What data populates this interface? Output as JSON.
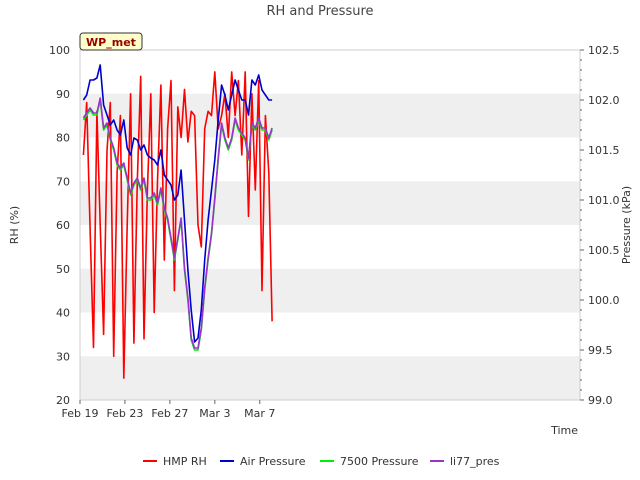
{
  "chart_data": {
    "type": "line",
    "title": "RH and Pressure",
    "badge": "WP_met",
    "xlabel": "Time",
    "ylabel_left": "RH (%)",
    "ylabel_right": "Pressure (kPa)",
    "ylim_left": [
      20,
      100
    ],
    "ylim_right": [
      99.0,
      102.5
    ],
    "yticks_left": [
      20,
      30,
      40,
      50,
      60,
      70,
      80,
      90,
      100
    ],
    "yticks_right": [
      99.0,
      99.5,
      100.0,
      100.5,
      101.0,
      101.5,
      102.0,
      102.5
    ],
    "xlim_days": [
      19,
      63.5
    ],
    "xticks": [
      {
        "day": 19,
        "label": "Feb 19"
      },
      {
        "day": 23,
        "label": "Feb 23"
      },
      {
        "day": 27,
        "label": "Feb 27"
      },
      {
        "day": 31,
        "label": "Mar 3"
      },
      {
        "day": 35,
        "label": "Mar 7"
      }
    ],
    "grid": "horizontal bands",
    "legend_position": "bottom",
    "colors": {
      "HMP RH": "#ff0000",
      "Air Pressure": "#0000cc",
      "7500 Pressure": "#00ee00",
      "li77_pres": "#9933cc",
      "band": "#efefef",
      "badge_bg": "#ffffcc",
      "badge_text": "#990000"
    },
    "series": [
      {
        "name": "HMP RH",
        "axis": "left",
        "x": [
          19.3,
          19.6,
          19.9,
          20.2,
          20.5,
          20.8,
          21.1,
          21.4,
          21.7,
          22.0,
          22.3,
          22.6,
          22.9,
          23.2,
          23.5,
          23.8,
          24.1,
          24.4,
          24.7,
          25.0,
          25.3,
          25.6,
          25.9,
          26.2,
          26.5,
          26.8,
          27.1,
          27.4,
          27.7,
          28.0,
          28.3,
          28.6,
          28.9,
          29.2,
          29.5,
          29.8,
          30.1,
          30.4,
          30.7,
          31.0,
          31.3,
          31.6,
          31.9,
          32.2,
          32.5,
          32.8,
          33.1,
          33.4,
          33.7,
          34.0,
          34.3,
          34.6,
          34.9,
          35.2,
          35.5,
          35.8,
          36.1
        ],
        "values": [
          76,
          88,
          59,
          32,
          86,
          60,
          35,
          77,
          88,
          30,
          72,
          85,
          25,
          60,
          90,
          33,
          70,
          94,
          34,
          68,
          90,
          40,
          70,
          92,
          52,
          82,
          93,
          45,
          87,
          80,
          91,
          79,
          86,
          85,
          60,
          55,
          82,
          86,
          85,
          95,
          82,
          85,
          90,
          80,
          95,
          85,
          93,
          76,
          95,
          62,
          90,
          68,
          93,
          45,
          85,
          72,
          38
        ]
      },
      {
        "name": "Air Pressure",
        "axis": "right",
        "x": [
          19.3,
          19.6,
          19.9,
          20.2,
          20.5,
          20.8,
          21.1,
          21.4,
          21.7,
          22.0,
          22.3,
          22.6,
          22.9,
          23.2,
          23.5,
          23.8,
          24.1,
          24.4,
          24.7,
          25.0,
          25.3,
          25.6,
          25.9,
          26.2,
          26.5,
          26.8,
          27.1,
          27.4,
          27.7,
          28.0,
          28.3,
          28.6,
          28.9,
          29.2,
          29.5,
          29.8,
          30.1,
          30.4,
          30.7,
          31.0,
          31.3,
          31.6,
          31.9,
          32.2,
          32.5,
          32.8,
          33.1,
          33.4,
          33.7,
          34.0,
          34.3,
          34.6,
          34.9,
          35.2,
          35.5,
          35.8,
          36.1
        ],
        "values": [
          102.0,
          102.05,
          102.2,
          102.2,
          102.22,
          102.35,
          101.95,
          101.85,
          101.75,
          101.8,
          101.7,
          101.65,
          101.8,
          101.52,
          101.45,
          101.62,
          101.6,
          101.5,
          101.55,
          101.45,
          101.42,
          101.4,
          101.35,
          101.5,
          101.25,
          101.2,
          101.15,
          101.0,
          101.05,
          101.3,
          100.8,
          100.3,
          99.9,
          99.58,
          99.62,
          99.9,
          100.4,
          100.8,
          101.1,
          101.4,
          101.8,
          102.15,
          102.05,
          101.9,
          102.05,
          102.2,
          102.1,
          102.0,
          102.0,
          101.85,
          102.2,
          102.15,
          102.25,
          102.1,
          102.05,
          102.0,
          102.0
        ]
      },
      {
        "name": "7500 Pressure",
        "axis": "right",
        "x": [
          19.3,
          19.6,
          19.9,
          20.2,
          20.5,
          20.8,
          21.1,
          21.4,
          21.7,
          22.0,
          22.3,
          22.6,
          22.9,
          23.2,
          23.5,
          23.8,
          24.1,
          24.4,
          24.7,
          25.0,
          25.3,
          25.6,
          25.9,
          26.2,
          26.5,
          26.8,
          27.1,
          27.4,
          27.7,
          28.0,
          28.3,
          28.6,
          28.9,
          29.2,
          29.5,
          29.8,
          30.1,
          30.4,
          30.7,
          31.0,
          31.3,
          31.6,
          31.9,
          32.2,
          32.5,
          32.8,
          33.1,
          33.4,
          33.7,
          34.0,
          34.3,
          34.6,
          34.9,
          35.2,
          35.5,
          35.8,
          36.1
        ],
        "values": [
          101.8,
          101.85,
          101.9,
          101.85,
          101.85,
          102.0,
          101.7,
          101.75,
          101.6,
          101.5,
          101.35,
          101.3,
          101.35,
          101.2,
          101.05,
          101.15,
          101.2,
          101.1,
          101.2,
          101.0,
          101.0,
          101.05,
          100.95,
          101.1,
          100.9,
          100.8,
          100.6,
          100.4,
          100.6,
          100.8,
          100.3,
          100.0,
          99.6,
          99.5,
          99.5,
          99.7,
          100.1,
          100.4,
          100.65,
          101.0,
          101.4,
          101.75,
          101.6,
          101.5,
          101.6,
          101.8,
          101.7,
          101.65,
          101.6,
          101.4,
          101.75,
          101.7,
          101.8,
          101.7,
          101.7,
          101.6,
          101.7
        ]
      },
      {
        "name": "li77_pres",
        "axis": "right",
        "x": [
          19.3,
          19.6,
          19.9,
          20.2,
          20.5,
          20.8,
          21.1,
          21.4,
          21.7,
          22.0,
          22.3,
          22.6,
          22.9,
          23.2,
          23.5,
          23.8,
          24.1,
          24.4,
          24.7,
          25.0,
          25.3,
          25.6,
          25.9,
          26.2,
          26.5,
          26.8,
          27.1,
          27.4,
          27.7,
          28.0,
          28.3,
          28.6,
          28.9,
          29.2,
          29.5,
          29.8,
          30.1,
          30.4,
          30.7,
          31.0,
          31.3,
          31.6,
          31.9,
          32.2,
          32.5,
          32.8,
          33.1,
          33.4,
          33.7,
          34.0,
          34.3,
          34.6,
          34.9,
          35.2,
          35.5,
          35.8,
          36.1
        ],
        "values": [
          101.82,
          101.87,
          101.92,
          101.87,
          101.87,
          102.02,
          101.72,
          101.77,
          101.62,
          101.52,
          101.37,
          101.32,
          101.37,
          101.22,
          101.07,
          101.17,
          101.22,
          101.12,
          101.22,
          101.02,
          101.02,
          101.07,
          100.97,
          101.12,
          100.92,
          100.82,
          100.62,
          100.42,
          100.62,
          100.82,
          100.32,
          100.02,
          99.62,
          99.52,
          99.52,
          99.72,
          100.12,
          100.42,
          100.67,
          101.02,
          101.42,
          101.77,
          101.62,
          101.52,
          101.62,
          101.82,
          101.72,
          101.67,
          101.62,
          101.42,
          101.77,
          101.72,
          101.82,
          101.72,
          101.72,
          101.62,
          101.72
        ]
      }
    ]
  }
}
